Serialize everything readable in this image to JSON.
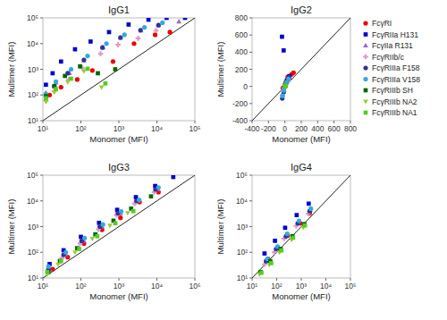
{
  "chart_data": [
    {
      "type": "scatter",
      "title": "IgG1",
      "x_label": "Monomer (MFI)",
      "y_label": "Multimer (MFI)",
      "log": true,
      "xlim": [
        10,
        100000
      ],
      "ylim": [
        10,
        100000
      ],
      "xticks": [
        {
          "value": 10,
          "label": "10¹"
        },
        {
          "value": 100,
          "label": "10²"
        },
        {
          "value": 1000,
          "label": "10³"
        },
        {
          "value": 10000,
          "label": "10⁴"
        },
        {
          "value": 100000,
          "label": "10⁵"
        }
      ],
      "yticks": [
        {
          "value": 10,
          "label": "10¹"
        },
        {
          "value": 100,
          "label": "10²"
        },
        {
          "value": 1000,
          "label": "10³"
        },
        {
          "value": 10000,
          "label": "10⁴"
        },
        {
          "value": 100000,
          "label": "10⁵"
        }
      ],
      "series": [
        {
          "color": "#EE0000",
          "marker": "circle",
          "x": [
            15,
            30,
            80,
            200,
            700,
            2500,
            9000,
            22000
          ],
          "values": [
            100,
            200,
            400,
            900,
            2000,
            10000,
            22000,
            28000
          ]
        },
        {
          "color": "#0000CC",
          "marker": "square",
          "x": [
            12,
            18,
            30,
            70,
            180,
            550,
            1800,
            6000,
            18000,
            55000
          ],
          "values": [
            250,
            700,
            2000,
            6000,
            12000,
            28000,
            55000,
            85000,
            100000,
            100000
          ]
        },
        {
          "color": "#9966CC",
          "marker": "triangle-up",
          "x": [
            12,
            22,
            50,
            120,
            380,
            1100,
            3800,
            11000,
            38000
          ],
          "values": [
            120,
            300,
            700,
            2200,
            7000,
            17000,
            32000,
            52000,
            72000
          ]
        },
        {
          "color": "#DD99CC",
          "marker": "plus",
          "x": [
            12,
            20,
            48,
            110,
            330,
            950,
            3200,
            9500
          ],
          "values": [
            60,
            140,
            400,
            1100,
            4000,
            9000,
            16000,
            32000
          ]
        },
        {
          "color": "#333399",
          "marker": "circle",
          "x": [
            12,
            20,
            45,
            120,
            370,
            1100,
            3700,
            11000
          ],
          "values": [
            90,
            220,
            700,
            2300,
            7000,
            17000,
            33000,
            52000
          ]
        },
        {
          "color": "#33AADD",
          "marker": "circle",
          "x": [
            12,
            22,
            55,
            150,
            470,
            1400,
            4700,
            14000
          ],
          "values": [
            110,
            330,
            1000,
            3300,
            10000,
            22000,
            43000,
            65000
          ]
        },
        {
          "color": "#006600",
          "marker": "square",
          "x": [
            12,
            20,
            38,
            95,
            280,
            800
          ],
          "values": [
            90,
            220,
            550,
            1300,
            700,
            1000
          ]
        },
        {
          "color": "#99CC33",
          "marker": "triangle-down",
          "x": [
            12,
            20,
            45,
            120,
            350
          ],
          "values": [
            55,
            130,
            320,
            850,
            200
          ]
        },
        {
          "color": "#55CC22",
          "marker": "square",
          "x": [
            12,
            22,
            55,
            150,
            440
          ],
          "values": [
            75,
            170,
            430,
            1050,
            280
          ]
        }
      ]
    },
    {
      "type": "scatter",
      "title": "IgG2",
      "x_label": "Monomer (MFI)",
      "y_label": "Multimer (MFI)",
      "legend": "right",
      "xlim": [
        -400,
        800
      ],
      "ylim": [
        -400,
        800
      ],
      "xticks": [
        -400,
        -200,
        0,
        200,
        400,
        600,
        800
      ],
      "yticks": [
        -400,
        -200,
        0,
        200,
        400,
        600,
        800
      ],
      "series": [
        {
          "name": "FcγRI",
          "color": "#EE0000",
          "marker": "circle",
          "x": [
            -25,
            -10,
            5,
            15,
            35,
            80,
            105
          ],
          "values": [
            -20,
            -10,
            20,
            55,
            110,
            140,
            160
          ]
        },
        {
          "name": "FcγRIIa H131",
          "color": "#0000CC",
          "marker": "square",
          "x": [
            -35,
            -15,
            2,
            8,
            25,
            55
          ],
          "values": [
            580,
            420,
            15,
            30,
            70,
            120
          ]
        },
        {
          "name": "FcγIIa R131",
          "color": "#9966CC",
          "marker": "triangle-up",
          "x": [
            -30,
            -12,
            2,
            6,
            22,
            55
          ],
          "values": [
            -90,
            -40,
            8,
            18,
            50,
            95
          ]
        },
        {
          "name": "FcγRIIb/c",
          "color": "#DD99CC",
          "marker": "plus",
          "x": [
            -20,
            -8,
            2,
            5,
            14,
            35
          ],
          "values": [
            -50,
            -20,
            5,
            10,
            28,
            58
          ]
        },
        {
          "name": "FcγRIIIa F158",
          "color": "#333399",
          "marker": "circle",
          "x": [
            -32,
            -14,
            2,
            6,
            22,
            52
          ],
          "values": [
            -140,
            -65,
            8,
            18,
            58,
            108
          ]
        },
        {
          "name": "FcγRIIIa V158",
          "color": "#33AADD",
          "marker": "circle",
          "x": [
            -28,
            -12,
            2,
            5,
            18,
            45
          ],
          "values": [
            -110,
            -48,
            6,
            14,
            45,
            88
          ]
        },
        {
          "name": "FcγRIIIb SH",
          "color": "#006600",
          "marker": "square",
          "x": [
            2,
            6,
            12
          ],
          "values": [
            5,
            8,
            14
          ]
        },
        {
          "name": "FcγRIIIb NA2",
          "color": "#99CC33",
          "marker": "triangle-down",
          "x": [
            1,
            4,
            8
          ],
          "values": [
            3,
            5,
            9
          ]
        },
        {
          "name": "FcγRIIIb NA1",
          "color": "#55CC22",
          "marker": "square",
          "x": [
            2,
            5,
            10
          ],
          "values": [
            4,
            6,
            11
          ]
        }
      ]
    },
    {
      "type": "scatter",
      "title": "IgG3",
      "x_label": "Monomer (MFI)",
      "y_label": "Multimer (MFI)",
      "log": true,
      "xlim": [
        10,
        100000
      ],
      "ylim": [
        10,
        100000
      ],
      "xticks": [
        {
          "value": 10,
          "label": "10¹"
        },
        {
          "value": 100,
          "label": "10²"
        },
        {
          "value": 1000,
          "label": "10³"
        },
        {
          "value": 10000,
          "label": "10⁴"
        },
        {
          "value": 100000,
          "label": "10⁵"
        }
      ],
      "yticks": [
        {
          "value": 10,
          "label": "10¹"
        },
        {
          "value": 100,
          "label": "10²"
        },
        {
          "value": 1000,
          "label": "10³"
        },
        {
          "value": 10000,
          "label": "10⁴"
        },
        {
          "value": 100000,
          "label": "10⁵"
        }
      ],
      "series": [
        {
          "color": "#EE0000",
          "marker": "circle",
          "x": [
            18,
            45,
            120,
            360,
            1100,
            3500,
            11000
          ],
          "values": [
            22,
            65,
            220,
            750,
            2200,
            9000,
            22000
          ]
        },
        {
          "color": "#0000CC",
          "marker": "square",
          "x": [
            15,
            35,
            100,
            300,
            900,
            2800,
            9000,
            27000
          ],
          "values": [
            35,
            120,
            400,
            1400,
            4500,
            14000,
            38000,
            85000
          ]
        },
        {
          "color": "#9966CC",
          "marker": "triangle-up",
          "x": [
            15,
            40,
            120,
            360,
            1100,
            3300,
            10500
          ],
          "values": [
            22,
            80,
            280,
            1000,
            3300,
            10000,
            28000
          ]
        },
        {
          "color": "#DD99CC",
          "marker": "plus",
          "x": [
            14,
            32,
            95,
            290,
            870,
            2600,
            8500
          ],
          "values": [
            17,
            60,
            220,
            780,
            2800,
            7800,
            22000
          ]
        },
        {
          "color": "#333399",
          "marker": "circle",
          "x": [
            14,
            35,
            105,
            315,
            940,
            2900,
            9200
          ],
          "values": [
            22,
            80,
            280,
            1000,
            3300,
            10000,
            28000
          ]
        },
        {
          "color": "#33AADD",
          "marker": "circle",
          "x": [
            14,
            40,
            125,
            380,
            1150,
            3400,
            11000
          ],
          "values": [
            28,
            100,
            360,
            1200,
            3900,
            11000,
            33000
          ]
        },
        {
          "color": "#006600",
          "marker": "square",
          "x": [
            14,
            28,
            80,
            240,
            720,
            2100,
            7000
          ],
          "values": [
            17,
            46,
            145,
            500,
            1700,
            5000,
            15000
          ]
        },
        {
          "color": "#99CC33",
          "marker": "triangle-down",
          "x": [
            13,
            25,
            70,
            200,
            580,
            1700
          ],
          "values": [
            14,
            34,
            100,
            340,
            1100,
            3400
          ]
        },
        {
          "color": "#55CC22",
          "marker": "square",
          "x": [
            13,
            30,
            90,
            270,
            810,
            2400
          ],
          "values": [
            17,
            45,
            135,
            420,
            1350,
            4000
          ]
        }
      ]
    },
    {
      "type": "scatter",
      "title": "IgG4",
      "x_label": "Monomer (MFI)",
      "y_label": "Multimer (MFI)",
      "log": true,
      "xlim": [
        10,
        100000
      ],
      "ylim": [
        10,
        100000
      ],
      "xticks": [
        {
          "value": 10,
          "label": "10¹"
        },
        {
          "value": 100,
          "label": "10²"
        },
        {
          "value": 1000,
          "label": "10³"
        },
        {
          "value": 10000,
          "label": "10⁴"
        },
        {
          "value": 100000,
          "label": "10⁵"
        }
      ],
      "yticks": [
        {
          "value": 10,
          "label": "10¹"
        },
        {
          "value": 100,
          "label": "10²"
        },
        {
          "value": 1000,
          "label": "10³"
        },
        {
          "value": 10000,
          "label": "10⁴"
        },
        {
          "value": 100000,
          "label": "10⁵"
        }
      ],
      "series": [
        {
          "color": "#EE0000",
          "marker": "circle",
          "x": [
            45,
            115,
            280,
            900,
            2200
          ],
          "values": [
            55,
            145,
            450,
            1350,
            3300
          ]
        },
        {
          "color": "#0000CC",
          "marker": "square",
          "x": [
            32,
            85,
            220,
            650,
            2000
          ],
          "values": [
            90,
            280,
            900,
            2800,
            7800
          ]
        },
        {
          "color": "#9966CC",
          "marker": "triangle-up",
          "x": [
            38,
            95,
            240,
            750,
            2300
          ],
          "values": [
            45,
            135,
            450,
            1450,
            4500
          ]
        },
        {
          "color": "#DD99CC",
          "marker": "plus",
          "x": [
            32,
            80,
            200,
            620,
            1900
          ],
          "values": [
            34,
            100,
            340,
            1060,
            3200
          ]
        },
        {
          "color": "#333399",
          "marker": "circle",
          "x": [
            37,
            95,
            240,
            720,
            2200
          ],
          "values": [
            45,
            135,
            420,
            1340,
            4000
          ]
        },
        {
          "color": "#33AADD",
          "marker": "circle",
          "x": [
            42,
            108,
            270,
            810,
            2450
          ],
          "values": [
            56,
            168,
            525,
            1680,
            5000
          ]
        },
        {
          "color": "#006600",
          "marker": "square",
          "x": [
            22,
            55,
            145,
            440,
            1330
          ],
          "values": [
            17,
            45,
            135,
            425,
            1250
          ]
        },
        {
          "color": "#99CC33",
          "marker": "triangle-down",
          "x": [
            20,
            50,
            130,
            400,
            1200
          ],
          "values": [
            14,
            33,
            100,
            310,
            940
          ]
        },
        {
          "color": "#55CC22",
          "marker": "square",
          "x": [
            24,
            60,
            155,
            465,
            1400
          ],
          "values": [
            16,
            38,
            118,
            368,
            1100
          ]
        }
      ]
    }
  ]
}
